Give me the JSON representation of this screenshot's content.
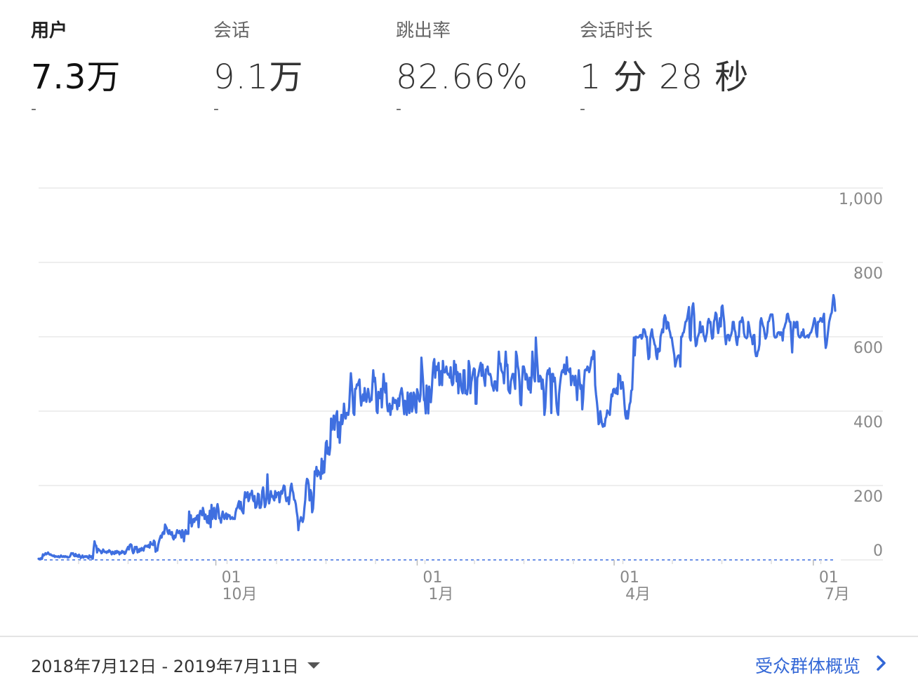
{
  "metrics": [
    {
      "label": "用户",
      "value": "7.3万",
      "delta": "-",
      "active": true
    },
    {
      "label": "会话",
      "value": "9.1万",
      "delta": "-",
      "active": false
    },
    {
      "label": "跳出率",
      "value": "82.66%",
      "delta": "-",
      "active": false
    },
    {
      "label": "会话时长",
      "value": "1 分 28 秒",
      "delta": "-",
      "active": false
    }
  ],
  "footer": {
    "date_range": "2018年7月12日 - 2019年7月11日",
    "overview_link": "受众群体概览"
  },
  "icons": {
    "date_dropdown": "caret-down-icon",
    "overview": "chevron-right-icon"
  },
  "colors": {
    "series_line": "#3f6fe0",
    "grid": "#e8e8e8",
    "link": "#3367d6"
  },
  "chart_data": {
    "type": "line",
    "series": [
      {
        "values": [
          3,
          3,
          3,
          5,
          3,
          15,
          12,
          14,
          18,
          15,
          17,
          20,
          16,
          14,
          15,
          12,
          12,
          10,
          12,
          8,
          10,
          9,
          8,
          10,
          7,
          8,
          12,
          9,
          8,
          10,
          8,
          10,
          8,
          9,
          6,
          7,
          8,
          12,
          18,
          17,
          18,
          12,
          10,
          16,
          10,
          12,
          8,
          14,
          10,
          5,
          8,
          12,
          6,
          8,
          10,
          8,
          10,
          7,
          4,
          12,
          10,
          6,
          10,
          3,
          30,
          50,
          40,
          38,
          20,
          30,
          28,
          25,
          24,
          18,
          20,
          28,
          24,
          21,
          22,
          19,
          23,
          21,
          26,
          24,
          20,
          15,
          22,
          18,
          16,
          23,
          18,
          24,
          20,
          22,
          15,
          20,
          18,
          24,
          20,
          22,
          16,
          18,
          25,
          30,
          35,
          28,
          40,
          42,
          40,
          25,
          18,
          22,
          35,
          30,
          35,
          20,
          28,
          22,
          30,
          25,
          32,
          28,
          25,
          35,
          38,
          36,
          38,
          35,
          40,
          33,
          48,
          42,
          42,
          40,
          52,
          48,
          22,
          30,
          25,
          40,
          50,
          58,
          65,
          60,
          72,
          75,
          70,
          95,
          90,
          85,
          75,
          70,
          80,
          70,
          68,
          75,
          60,
          55,
          65,
          60,
          70,
          80,
          75,
          72,
          78,
          70,
          60,
          80,
          72,
          50,
          75,
          80,
          70,
          75,
          70,
          130,
          100,
          120,
          90,
          100,
          110,
          102,
          112,
          108,
          118,
          120,
          88,
          122,
          132,
          128,
          120,
          140,
          128,
          110,
          122,
          110,
          100,
          118,
          98,
          132,
          88,
          148,
          110,
          128,
          140,
          112,
          110,
          138,
          150,
          136,
          112,
          112,
          100,
          118,
          130,
          118,
          110,
          120,
          125,
          110,
          122,
          118,
          120,
          110,
          112,
          115,
          110,
          112,
          110,
          128,
          138,
          140,
          150,
          158,
          138,
          156,
          134,
          130,
          125,
          162,
          182,
          168,
          172,
          182,
          158,
          165,
          178,
          176,
          186,
          164,
          158,
          172,
          140,
          142,
          150,
          178,
          176,
          140,
          140,
          150,
          185,
          195,
          172,
          142,
          150,
          168,
          230,
          172,
          152,
          165,
          185,
          170,
          172,
          165,
          160,
          185,
          168,
          180,
          176,
          182,
          155,
          172,
          185,
          178,
          190,
          200,
          198,
          172,
          158,
          162,
          168,
          150,
          172,
          195,
          205,
          188,
          180,
          162,
          160,
          150,
          130,
          115,
          80,
          100,
          105,
          115,
          110,
          102,
          112,
          140,
          162,
          202,
          218,
          215,
          202,
          160,
          188,
          180,
          128,
          138,
          175,
          238,
          230,
          250,
          225,
          240,
          230,
          235,
          218,
          272,
          232,
          265,
          235,
          275,
          315,
          320,
          285,
          302,
          283,
          302,
          380,
          350,
          362,
          388,
          350,
          382,
          390,
          400,
          330,
          370,
          315,
          360,
          390,
          365,
          380,
          420,
          392,
          380,
          395,
          395,
          390,
          410,
          460,
          502,
          475,
          440,
          395,
          390,
          460,
          460,
          472,
          470,
          478,
          485,
          440,
          415,
          432,
          445,
          428,
          462,
          440,
          425,
          440,
          460,
          445,
          425,
          430,
          430,
          470,
          510,
          480,
          490,
          460,
          400,
          395,
          452,
          448,
          435,
          460,
          410,
          458,
          500,
          470,
          450,
          475,
          420,
          400,
          400,
          420,
          390,
          414,
          406,
          436,
          430,
          422,
          430,
          424,
          405,
          434,
          414,
          442,
          452,
          462,
          446,
          416,
          392,
          428,
          420,
          390,
          450,
          420,
          395,
          447,
          449,
          399,
          411,
          450,
          444,
          408,
          396,
          459,
          449,
          434,
          426,
          444,
          544,
          512,
          478,
          430,
          427,
          394,
          469,
          448,
          394,
          466,
          448,
          424,
          454,
          498,
          530,
          540,
          490,
          520,
          510,
          520,
          530,
          470,
          486,
          508,
          470,
          535,
          508,
          504,
          508,
          520,
          502,
          498,
          500,
          490,
          518,
          480,
          470,
          475,
          535,
          500,
          525,
          480,
          505,
          448,
          500,
          500,
          468,
          455,
          448,
          510,
          510,
          448,
          455,
          445,
          462,
          535,
          520,
          448,
          478,
          490,
          505,
          515,
          512,
          420,
          420,
          490,
          495,
          508,
          520,
          530,
          495,
          525,
          500,
          485,
          468,
          512,
          510,
          520,
          500,
          498,
          500,
          490,
          470,
          465,
          455,
          480,
          480,
          460,
          455,
          508,
          560,
          528,
          528,
          510,
          505,
          500,
          475,
          515,
          560,
          522,
          525,
          458,
          452,
          448,
          480,
          490,
          500,
          500,
          478,
          460,
          560,
          548,
          522,
          510,
          478,
          420,
          416,
          480,
          520,
          520,
          510,
          485,
          500,
          492,
          462,
          458,
          490,
          450,
          490,
          560,
          520,
          490,
          480,
          598,
          555,
          520,
          480,
          480,
          495,
          490,
          460,
          485,
          455,
          390,
          410,
          460,
          500,
          510,
          500,
          515,
          480,
          395,
          500,
          500,
          480,
          490,
          460,
          420,
          398,
          390,
          445,
          470,
          490,
          505,
          510,
          505,
          525,
          500,
          500,
          545,
          510,
          512,
          505,
          515,
          470,
          490,
          495,
          487,
          470,
          495,
          467,
          430,
          480,
          510,
          480,
          460,
          470,
          405,
          434,
          480,
          510,
          512,
          510,
          520,
          515,
          505,
          515,
          530,
          545,
          540,
          562,
          560,
          470,
          445,
          425,
          400,
          365,
          370,
          400,
          380,
          365,
          358,
          365,
          360,
          380,
          385,
          402,
          398,
          395,
          390,
          420,
          445,
          440,
          458,
          460,
          450,
          448,
          462,
          446,
          500,
          492,
          495,
          460,
          470,
          478,
          455,
          420,
          390,
          380,
          400,
          380,
          400,
          418,
          425,
          455,
          458,
          520,
          598,
          550,
          600,
          600,
          598,
          598,
          600,
          604,
          605,
          595,
          600,
          620,
          620,
          614,
          600,
          600,
          565,
          540,
          545,
          595,
          610,
          620,
          600,
          592,
          580,
          575,
          550,
          540,
          568,
          560,
          562,
          600,
          610,
          620,
          612,
          648,
          658,
          650,
          622,
          640,
          638,
          620,
          612,
          598,
          598,
          580,
          565,
          550,
          520,
          530,
          540,
          548,
          550,
          548,
          520,
          600,
          600,
          610,
          612,
          625,
          640,
          642,
          650,
          665,
          680,
          598,
          590,
          650,
          680,
          690,
          660,
          600,
          575,
          580,
          598,
          604,
          612,
          640,
          612,
          620,
          628,
          605,
          598,
          588,
          600,
          612,
          640,
          648,
          638,
          640,
          612,
          595,
          598,
          640,
          648,
          665,
          660,
          630,
          610,
          628,
          650,
          628,
          680,
          684,
          660,
          640,
          600,
          580,
          600,
          605,
          605,
          590,
          600,
          605,
          615,
          640,
          640,
          620,
          612,
          590,
          578,
          600,
          600,
          640,
          642,
          640,
          652,
          640,
          610,
          600,
          598,
          596,
          600,
          640,
          628,
          612,
          600,
          598,
          580,
          604,
          605,
          560,
          548,
          548,
          560,
          565,
          580,
          640,
          650,
          640,
          630,
          624,
          608,
          595,
          600,
          612,
          640,
          642,
          652,
          660,
          660,
          660,
          640,
          604,
          598,
          598,
          600,
          610,
          612,
          612,
          605,
          612,
          610,
          590,
          620,
          625,
          634,
          640,
          660,
          662,
          650,
          640,
          640,
          598,
          558,
          612,
          640,
          628,
          625,
          640,
          640,
          606,
          600,
          598,
          600,
          612,
          604,
          620,
          600,
          598,
          600,
          602,
          604,
          598,
          605,
          610,
          612,
          620,
          628,
          640,
          650,
          640,
          610,
          600,
          640,
          640,
          642,
          650,
          648,
          640,
          652,
          662,
          600,
          570,
          580,
          600,
          620,
          640,
          650,
          660,
          665,
          690,
          712,
          700,
          670
        ]
      }
    ],
    "x_ticks": [
      {
        "day": "01",
        "month": "10月"
      },
      {
        "day": "01",
        "month": "1月"
      },
      {
        "day": "01",
        "month": "4月"
      },
      {
        "day": "01",
        "month": "7月"
      }
    ],
    "y_ticks": [
      0,
      200,
      400,
      600,
      800,
      "1,000"
    ],
    "ylim": [
      0,
      1000
    ],
    "grid": true
  }
}
